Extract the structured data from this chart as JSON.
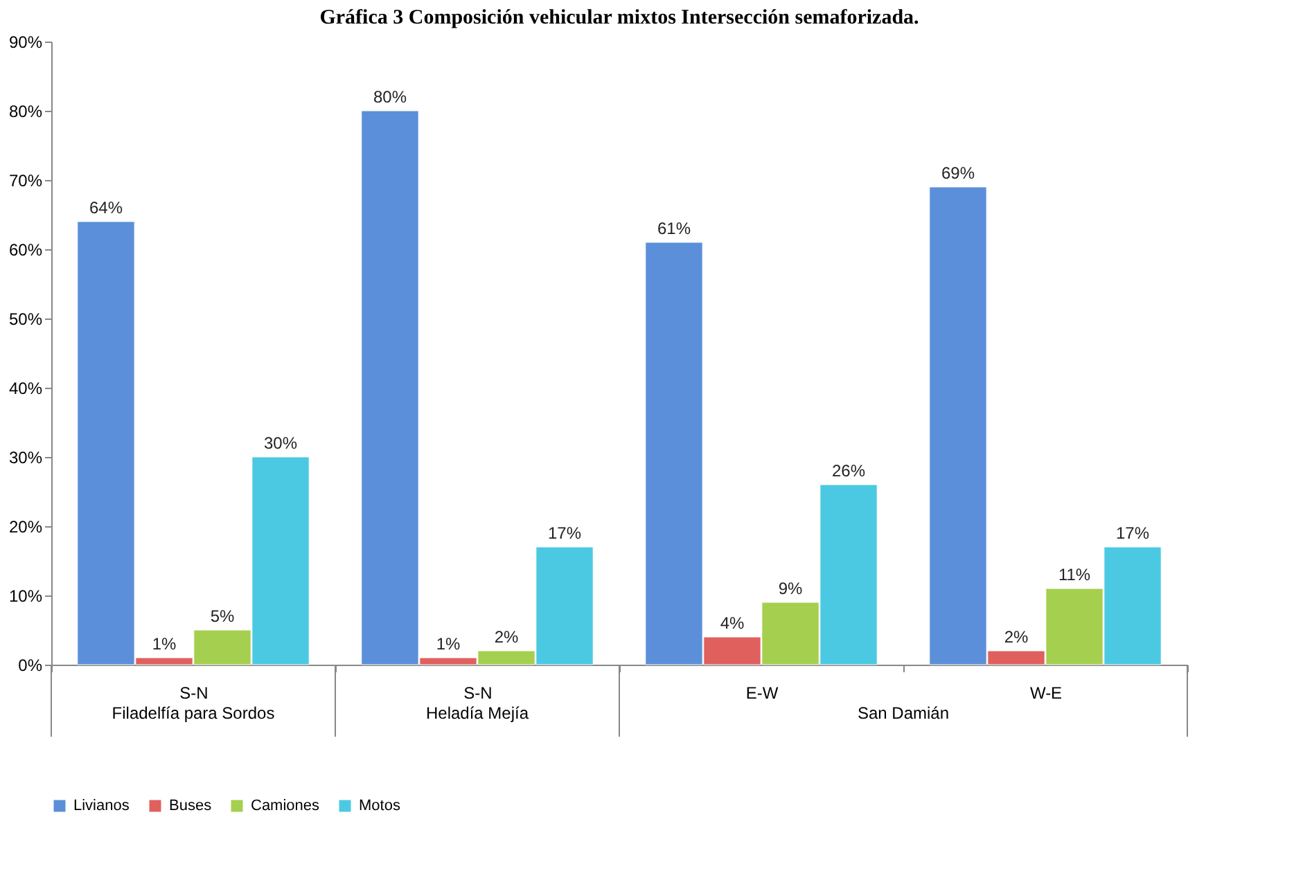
{
  "chart_data": {
    "type": "bar",
    "title": "Gráfica 3 Composición vehicular mixtos Intersección semaforizada.",
    "categories": [
      "S-N",
      "S-N",
      "E-W",
      "W-E"
    ],
    "series": [
      {
        "name": "Livianos",
        "color": "#5b8fd9",
        "values": [
          64,
          80,
          61,
          69
        ],
        "value_labels": [
          "64%",
          "80%",
          "61%",
          "69%"
        ]
      },
      {
        "name": "Buses",
        "color": "#e0605e",
        "values": [
          1,
          1,
          4,
          2
        ],
        "value_labels": [
          "1%",
          "1%",
          "4%",
          "2%"
        ]
      },
      {
        "name": "Camiones",
        "color": "#a5cf4f",
        "values": [
          5,
          2,
          9,
          11
        ],
        "value_labels": [
          "5%",
          "2%",
          "9%",
          "11%"
        ]
      },
      {
        "name": "Motos",
        "color": "#4cc9e2",
        "values": [
          30,
          17,
          26,
          17
        ],
        "value_labels": [
          "30%",
          "17%",
          "26%",
          "17%"
        ]
      }
    ],
    "annotations": [
      "Filadelfía para Sordos",
      "Heladía Mejía",
      "San Damián"
    ],
    "ylim": [
      0,
      90
    ],
    "yticks": [
      {
        "value": 0,
        "label": "0%"
      },
      {
        "value": 10,
        "label": "10%"
      },
      {
        "value": 20,
        "label": "20%"
      },
      {
        "value": 30,
        "label": "30%"
      },
      {
        "value": 40,
        "label": "40%"
      },
      {
        "value": 50,
        "label": "50%"
      },
      {
        "value": 60,
        "label": "60%"
      },
      {
        "value": 70,
        "label": "70%"
      },
      {
        "value": 80,
        "label": "80%"
      },
      {
        "value": 90,
        "label": "90%"
      }
    ],
    "grid": false,
    "legend": "bottom"
  }
}
